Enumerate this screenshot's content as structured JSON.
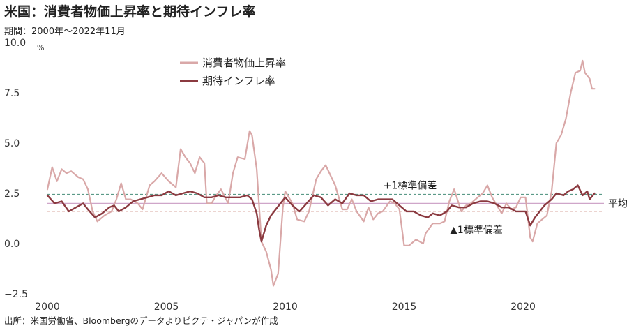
{
  "header": {
    "title": "米国：消費者物価上昇率と期待インフレ率",
    "subtitle": "期間：2000年～2022年11月"
  },
  "footer": {
    "source": "出所：米国労働省、Bloombergのデータよりピクテ・ジャパンが作成"
  },
  "chart_data": {
    "type": "line",
    "title": "米国：消費者物価上昇率と期待インフレ率",
    "ylabel": "%",
    "xlim": [
      2000,
      2023.4
    ],
    "ylim": [
      -2.5,
      10.0
    ],
    "x_ticks": [
      "2000",
      "2005",
      "2010",
      "2015",
      "2020"
    ],
    "y_ticks": [
      "10.0",
      "7.5",
      "5.0",
      "2.5",
      "0.0",
      "−2.5"
    ],
    "grid": false,
    "legend": "top-left",
    "series": [
      {
        "name": "消費者物価上昇率",
        "color": "#d9a8a8",
        "points": [
          [
            2000.0,
            2.7
          ],
          [
            2000.2,
            3.8
          ],
          [
            2000.4,
            3.1
          ],
          [
            2000.6,
            3.7
          ],
          [
            2000.8,
            3.5
          ],
          [
            2001.0,
            3.6
          ],
          [
            2001.3,
            3.3
          ],
          [
            2001.5,
            3.2
          ],
          [
            2001.7,
            2.7
          ],
          [
            2001.9,
            1.6
          ],
          [
            2002.1,
            1.1
          ],
          [
            2002.4,
            1.4
          ],
          [
            2002.7,
            1.6
          ],
          [
            2002.9,
            2.2
          ],
          [
            2003.1,
            3.0
          ],
          [
            2003.3,
            2.2
          ],
          [
            2003.5,
            2.2
          ],
          [
            2003.8,
            2.0
          ],
          [
            2004.0,
            1.7
          ],
          [
            2004.3,
            2.9
          ],
          [
            2004.5,
            3.1
          ],
          [
            2004.8,
            3.5
          ],
          [
            2005.1,
            3.1
          ],
          [
            2005.4,
            2.8
          ],
          [
            2005.6,
            4.7
          ],
          [
            2005.8,
            4.3
          ],
          [
            2006.0,
            4.0
          ],
          [
            2006.2,
            3.5
          ],
          [
            2006.4,
            4.3
          ],
          [
            2006.6,
            4.0
          ],
          [
            2006.7,
            2.0
          ],
          [
            2006.9,
            2.0
          ],
          [
            2007.1,
            2.4
          ],
          [
            2007.3,
            2.7
          ],
          [
            2007.6,
            2.0
          ],
          [
            2007.8,
            3.5
          ],
          [
            2008.0,
            4.3
          ],
          [
            2008.3,
            4.2
          ],
          [
            2008.5,
            5.6
          ],
          [
            2008.6,
            5.4
          ],
          [
            2008.8,
            3.7
          ],
          [
            2009.0,
            0.1
          ],
          [
            2009.2,
            -0.4
          ],
          [
            2009.4,
            -1.3
          ],
          [
            2009.5,
            -2.1
          ],
          [
            2009.7,
            -1.5
          ],
          [
            2009.9,
            1.8
          ],
          [
            2010.0,
            2.6
          ],
          [
            2010.3,
            2.0
          ],
          [
            2010.5,
            1.2
          ],
          [
            2010.8,
            1.1
          ],
          [
            2011.0,
            1.6
          ],
          [
            2011.3,
            3.2
          ],
          [
            2011.5,
            3.6
          ],
          [
            2011.7,
            3.9
          ],
          [
            2011.9,
            3.4
          ],
          [
            2012.1,
            2.9
          ],
          [
            2012.4,
            1.7
          ],
          [
            2012.6,
            1.7
          ],
          [
            2012.8,
            2.2
          ],
          [
            2013.0,
            1.6
          ],
          [
            2013.3,
            1.1
          ],
          [
            2013.5,
            1.8
          ],
          [
            2013.7,
            1.2
          ],
          [
            2013.9,
            1.5
          ],
          [
            2014.1,
            1.6
          ],
          [
            2014.4,
            2.1
          ],
          [
            2014.6,
            2.0
          ],
          [
            2014.8,
            1.7
          ],
          [
            2015.0,
            -0.1
          ],
          [
            2015.2,
            -0.1
          ],
          [
            2015.5,
            0.2
          ],
          [
            2015.8,
            0.0
          ],
          [
            2015.9,
            0.5
          ],
          [
            2016.2,
            1.0
          ],
          [
            2016.5,
            1.0
          ],
          [
            2016.7,
            1.1
          ],
          [
            2016.9,
            2.1
          ],
          [
            2017.1,
            2.7
          ],
          [
            2017.4,
            1.6
          ],
          [
            2017.6,
            1.9
          ],
          [
            2017.8,
            2.0
          ],
          [
            2018.0,
            2.2
          ],
          [
            2018.3,
            2.5
          ],
          [
            2018.5,
            2.9
          ],
          [
            2018.7,
            2.3
          ],
          [
            2018.9,
            1.9
          ],
          [
            2019.1,
            1.5
          ],
          [
            2019.3,
            2.0
          ],
          [
            2019.5,
            1.7
          ],
          [
            2019.7,
            1.8
          ],
          [
            2019.9,
            2.3
          ],
          [
            2020.1,
            2.3
          ],
          [
            2020.3,
            0.3
          ],
          [
            2020.4,
            0.1
          ],
          [
            2020.6,
            1.0
          ],
          [
            2020.8,
            1.2
          ],
          [
            2021.0,
            1.4
          ],
          [
            2021.2,
            2.6
          ],
          [
            2021.4,
            5.0
          ],
          [
            2021.6,
            5.4
          ],
          [
            2021.8,
            6.2
          ],
          [
            2022.0,
            7.5
          ],
          [
            2022.2,
            8.5
          ],
          [
            2022.4,
            8.6
          ],
          [
            2022.5,
            9.1
          ],
          [
            2022.6,
            8.5
          ],
          [
            2022.8,
            8.2
          ],
          [
            2022.9,
            7.7
          ],
          [
            2023.0,
            7.7
          ]
        ]
      },
      {
        "name": "期待インフレ率",
        "color": "#8b3a40",
        "points": [
          [
            2000.0,
            2.4
          ],
          [
            2000.3,
            2.0
          ],
          [
            2000.6,
            2.1
          ],
          [
            2000.9,
            1.6
          ],
          [
            2001.2,
            1.8
          ],
          [
            2001.5,
            2.0
          ],
          [
            2001.7,
            1.7
          ],
          [
            2002.0,
            1.3
          ],
          [
            2002.3,
            1.5
          ],
          [
            2002.6,
            1.8
          ],
          [
            2002.8,
            1.9
          ],
          [
            2003.0,
            1.6
          ],
          [
            2003.3,
            1.8
          ],
          [
            2003.6,
            2.1
          ],
          [
            2003.9,
            2.2
          ],
          [
            2004.2,
            2.3
          ],
          [
            2004.5,
            2.4
          ],
          [
            2004.8,
            2.4
          ],
          [
            2005.1,
            2.6
          ],
          [
            2005.4,
            2.4
          ],
          [
            2005.7,
            2.5
          ],
          [
            2006.0,
            2.6
          ],
          [
            2006.3,
            2.5
          ],
          [
            2006.6,
            2.3
          ],
          [
            2006.9,
            2.3
          ],
          [
            2007.2,
            2.4
          ],
          [
            2007.5,
            2.3
          ],
          [
            2007.8,
            2.3
          ],
          [
            2008.1,
            2.3
          ],
          [
            2008.4,
            2.4
          ],
          [
            2008.6,
            2.2
          ],
          [
            2008.8,
            1.5
          ],
          [
            2008.9,
            0.7
          ],
          [
            2009.0,
            0.1
          ],
          [
            2009.2,
            0.9
          ],
          [
            2009.4,
            1.4
          ],
          [
            2009.6,
            1.7
          ],
          [
            2009.8,
            2.0
          ],
          [
            2010.0,
            2.3
          ],
          [
            2010.3,
            1.9
          ],
          [
            2010.6,
            1.6
          ],
          [
            2010.9,
            2.0
          ],
          [
            2011.2,
            2.4
          ],
          [
            2011.5,
            2.3
          ],
          [
            2011.8,
            1.9
          ],
          [
            2012.1,
            2.2
          ],
          [
            2012.4,
            2.0
          ],
          [
            2012.7,
            2.5
          ],
          [
            2013.0,
            2.4
          ],
          [
            2013.3,
            2.4
          ],
          [
            2013.6,
            2.1
          ],
          [
            2013.9,
            2.2
          ],
          [
            2014.2,
            2.2
          ],
          [
            2014.5,
            2.2
          ],
          [
            2014.8,
            1.9
          ],
          [
            2015.1,
            1.6
          ],
          [
            2015.4,
            1.6
          ],
          [
            2015.7,
            1.4
          ],
          [
            2016.0,
            1.3
          ],
          [
            2016.2,
            1.5
          ],
          [
            2016.5,
            1.4
          ],
          [
            2016.8,
            1.6
          ],
          [
            2017.0,
            1.9
          ],
          [
            2017.3,
            1.8
          ],
          [
            2017.6,
            1.8
          ],
          [
            2017.9,
            2.0
          ],
          [
            2018.2,
            2.1
          ],
          [
            2018.5,
            2.1
          ],
          [
            2018.8,
            2.0
          ],
          [
            2019.1,
            1.8
          ],
          [
            2019.4,
            1.8
          ],
          [
            2019.7,
            1.6
          ],
          [
            2019.9,
            1.6
          ],
          [
            2020.1,
            1.6
          ],
          [
            2020.3,
            0.9
          ],
          [
            2020.5,
            1.3
          ],
          [
            2020.7,
            1.6
          ],
          [
            2020.9,
            1.9
          ],
          [
            2021.2,
            2.2
          ],
          [
            2021.4,
            2.5
          ],
          [
            2021.7,
            2.4
          ],
          [
            2021.9,
            2.6
          ],
          [
            2022.1,
            2.7
          ],
          [
            2022.3,
            2.9
          ],
          [
            2022.5,
            2.4
          ],
          [
            2022.7,
            2.6
          ],
          [
            2022.8,
            2.2
          ],
          [
            2023.0,
            2.5
          ]
        ]
      }
    ],
    "reference_lines": [
      {
        "name": "mean",
        "label": "平均",
        "value": 2.0,
        "color": "#cfa6c9",
        "style": "solid"
      },
      {
        "name": "plus-1sd",
        "label": "+1標準偏差",
        "value": 2.45,
        "color": "#5b9a88",
        "style": "dashed"
      },
      {
        "name": "minus-1sd",
        "label": "▲1標準偏差",
        "value": 1.6,
        "color": "#d9a8a0",
        "style": "dashed"
      }
    ]
  }
}
